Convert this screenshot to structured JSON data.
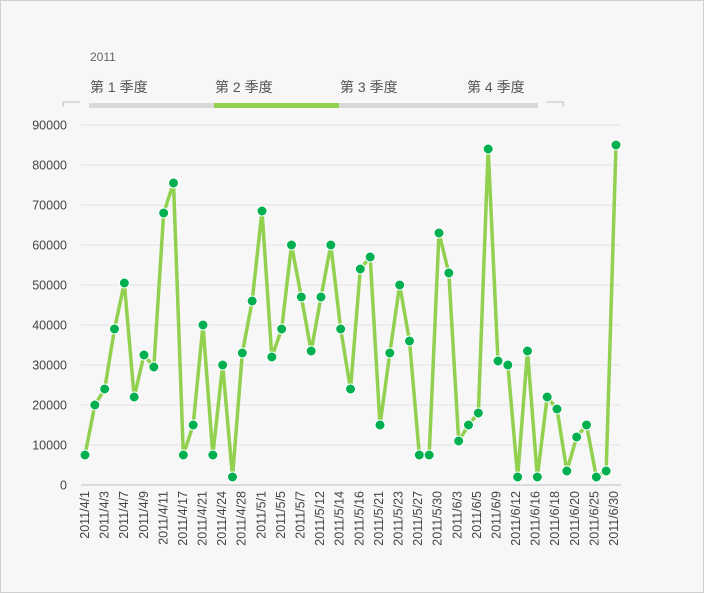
{
  "timeline": {
    "year_label": "2011",
    "quarters": [
      "第 1 季度",
      "第 2 季度",
      "第 3 季度",
      "第 4 季度"
    ],
    "selected_index": 1,
    "colors": {
      "selected": "#92d050",
      "unselected": "#d9d9d9"
    }
  },
  "chart_data": {
    "type": "line",
    "title": "",
    "xlabel": "",
    "ylabel": "",
    "ylim": [
      0,
      90000
    ],
    "y_ticks": [
      "0",
      "10000",
      "20000",
      "30000",
      "40000",
      "50000",
      "60000",
      "70000",
      "80000",
      "90000"
    ],
    "grid": true,
    "legend": "none",
    "line_color": "#92d050",
    "marker_color": "#00b050",
    "x_tick_labels": [
      "2011/4/1",
      "2011/4/3",
      "2011/4/7",
      "2011/4/9",
      "2011/4/11",
      "2011/4/17",
      "2011/4/21",
      "2011/4/24",
      "2011/4/28",
      "2011/5/1",
      "2011/5/5",
      "2011/5/7",
      "2011/5/12",
      "2011/5/14",
      "2011/5/16",
      "2011/5/21",
      "2011/5/23",
      "2011/5/27",
      "2011/5/30",
      "2011/6/3",
      "2011/6/5",
      "2011/6/9",
      "2011/6/12",
      "2011/6/16",
      "2011/6/18",
      "2011/6/20",
      "2011/6/25",
      "2011/6/30"
    ],
    "values": [
      7500,
      20000,
      24000,
      39000,
      50500,
      22000,
      32500,
      29500,
      68000,
      75500,
      7500,
      15000,
      40000,
      7500,
      30000,
      2000,
      33000,
      46000,
      68500,
      32000,
      39000,
      60000,
      47000,
      33500,
      47000,
      60000,
      39000,
      24000,
      54000,
      57000,
      15000,
      33000,
      50000,
      36000,
      7500,
      7500,
      63000,
      53000,
      11000,
      15000,
      18000,
      84000,
      31000,
      30000,
      2000,
      33500,
      2000,
      22000,
      19000,
      3500,
      12000,
      15000,
      2000,
      3500,
      85000
    ]
  }
}
